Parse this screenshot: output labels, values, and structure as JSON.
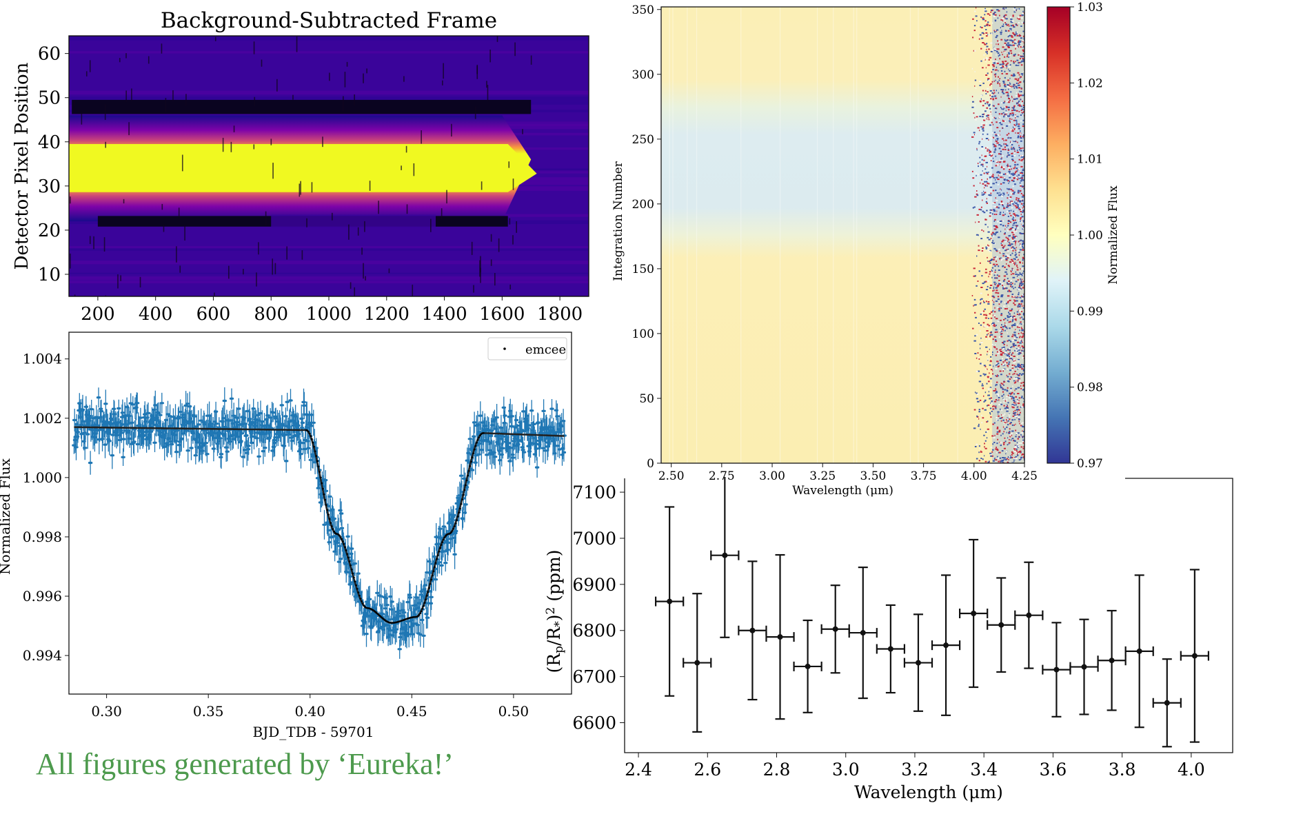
{
  "footer_text": "All figures generated by ‘Eureka!’",
  "chart_data": [
    {
      "id": "frame",
      "type": "heatmap",
      "title": "Background-Subtracted Frame",
      "xlabel": "",
      "ylabel": "Detector Pixel Position",
      "xlim": [
        100,
        1900
      ],
      "ylim": [
        5,
        64
      ],
      "xticks": [
        200,
        400,
        600,
        800,
        1000,
        1200,
        1400,
        1600,
        1800
      ],
      "yticks": [
        10,
        20,
        30,
        40,
        50,
        60
      ],
      "colormap": "plasma"
    },
    {
      "id": "lightcurve",
      "type": "line",
      "xlabel": "BJD_TDB - 59701",
      "ylabel": "Normalized Flux",
      "xlim": [
        0.2815,
        0.5285
      ],
      "ylim": [
        0.9927,
        1.0049
      ],
      "xticks": [
        0.3,
        0.35,
        0.4,
        0.45,
        0.5
      ],
      "yticks": [
        0.994,
        0.996,
        0.998,
        1.0,
        1.002,
        1.004
      ],
      "ytick_labels": [
        "0.994",
        "0.996",
        "0.998",
        "1.000",
        "1.002",
        "1.004"
      ],
      "legend": [
        "emcee"
      ],
      "legend_position": "top-right",
      "data_color": "#1f77b4",
      "model": {
        "x": [
          0.284,
          0.398,
          0.413,
          0.428,
          0.44,
          0.452,
          0.468,
          0.485,
          0.525
        ],
        "y": [
          1.0017,
          1.0016,
          0.9981,
          0.9956,
          0.9951,
          0.9953,
          0.9981,
          1.0015,
          1.0014
        ]
      }
    },
    {
      "id": "spectra",
      "type": "heatmap",
      "xlabel": "Wavelength (μm)",
      "ylabel": "Integration Number",
      "xlim": [
        2.45,
        4.25
      ],
      "ylim": [
        0,
        352
      ],
      "xticks": [
        2.5,
        2.75,
        3.0,
        3.25,
        3.5,
        3.75,
        4.0,
        4.25
      ],
      "xtick_labels": [
        "2.50",
        "2.75",
        "3.00",
        "3.25",
        "3.50",
        "3.75",
        "4.00",
        "4.25"
      ],
      "yticks": [
        0,
        50,
        100,
        150,
        200,
        250,
        300,
        350
      ],
      "colormap": "RdYlBu_r",
      "colorbar": {
        "label": "Normalized Flux",
        "range": [
          0.97,
          1.03
        ],
        "ticks": [
          0.97,
          0.98,
          0.99,
          1.0,
          1.01,
          1.02,
          1.03
        ],
        "tick_labels": [
          "0.97",
          "0.98",
          "0.99",
          "1.00",
          "1.01",
          "1.02",
          "1.03"
        ]
      }
    },
    {
      "id": "transmission",
      "type": "scatter",
      "xlabel": "Wavelength (μm)",
      "ylabel": "(Rp/R*)² (ppm)",
      "ylabel_parts": [
        "(R",
        "p",
        "/R",
        "*",
        ")",
        "2",
        " (ppm)"
      ],
      "xlim": [
        2.36,
        4.12
      ],
      "ylim": [
        6535,
        7130
      ],
      "xticks": [
        2.4,
        2.6,
        2.8,
        3.0,
        3.2,
        3.4,
        3.6,
        3.8,
        4.0
      ],
      "xtick_labels": [
        "2.4",
        "2.6",
        "2.8",
        "3.0",
        "3.2",
        "3.4",
        "3.6",
        "3.8",
        "4.0"
      ],
      "yticks": [
        6600,
        6700,
        6800,
        6900,
        7000,
        7100
      ],
      "points": [
        {
          "x": 2.49,
          "y": 6863,
          "yerr": 205,
          "xerr": 0.04
        },
        {
          "x": 2.57,
          "y": 6730,
          "yerr": 150,
          "xerr": 0.04
        },
        {
          "x": 2.65,
          "y": 6963,
          "yerr": 178,
          "xerr": 0.04
        },
        {
          "x": 2.73,
          "y": 6800,
          "yerr": 150,
          "xerr": 0.04
        },
        {
          "x": 2.81,
          "y": 6786,
          "yerr": 178,
          "xerr": 0.04
        },
        {
          "x": 2.89,
          "y": 6722,
          "yerr": 100,
          "xerr": 0.04
        },
        {
          "x": 2.97,
          "y": 6803,
          "yerr": 95,
          "xerr": 0.04
        },
        {
          "x": 3.05,
          "y": 6795,
          "yerr": 142,
          "xerr": 0.04
        },
        {
          "x": 3.13,
          "y": 6760,
          "yerr": 95,
          "xerr": 0.04
        },
        {
          "x": 3.21,
          "y": 6730,
          "yerr": 105,
          "xerr": 0.04
        },
        {
          "x": 3.29,
          "y": 6768,
          "yerr": 152,
          "xerr": 0.04
        },
        {
          "x": 3.37,
          "y": 6837,
          "yerr": 160,
          "xerr": 0.04
        },
        {
          "x": 3.45,
          "y": 6812,
          "yerr": 102,
          "xerr": 0.04
        },
        {
          "x": 3.53,
          "y": 6833,
          "yerr": 115,
          "xerr": 0.04
        },
        {
          "x": 3.61,
          "y": 6715,
          "yerr": 102,
          "xerr": 0.04
        },
        {
          "x": 3.69,
          "y": 6721,
          "yerr": 103,
          "xerr": 0.04
        },
        {
          "x": 3.77,
          "y": 6735,
          "yerr": 108,
          "xerr": 0.04
        },
        {
          "x": 3.85,
          "y": 6755,
          "yerr": 165,
          "xerr": 0.04
        },
        {
          "x": 3.93,
          "y": 6643,
          "yerr": 95,
          "xerr": 0.04
        },
        {
          "x": 4.01,
          "y": 6745,
          "yerr": 187,
          "xerr": 0.04
        }
      ]
    }
  ]
}
